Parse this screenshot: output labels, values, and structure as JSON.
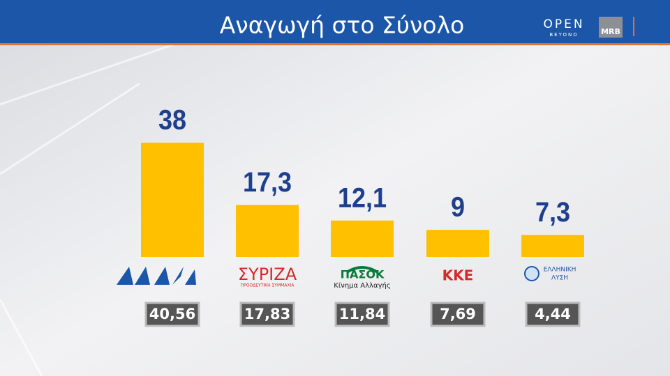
{
  "header": {
    "brand": "OPEN",
    "brand_sub": "BEYOND",
    "partner": "MRB"
  },
  "chart_data": {
    "type": "bar",
    "title": "Αναγωγή στο Σύνολο",
    "categories": [
      null,
      "ΣΥΡΙΖΑ",
      "ΠΑΣΟΚ",
      "ΚΚΕ",
      "ΕΛΛΗΝΙΚΗ"
    ],
    "category_subtitles": [
      null,
      "ΠΡΟΟΔΕΥΤΙΚΗ ΣΥΜΜΑΧΙΑ",
      "Κίνημα Αλλαγής",
      null,
      "ΛΥΣΗ"
    ],
    "values": [
      38,
      17.3,
      12.1,
      9,
      7.3
    ],
    "value_labels": [
      "38",
      "17,3",
      "12,1",
      "9",
      "7,3"
    ],
    "color": "#ffc000",
    "previous_values": [
      40.56,
      17.83,
      11.84,
      7.69,
      4.44
    ],
    "previous_labels": [
      "40,56",
      "17,83",
      "11,84",
      "7,69",
      "4,44"
    ]
  }
}
